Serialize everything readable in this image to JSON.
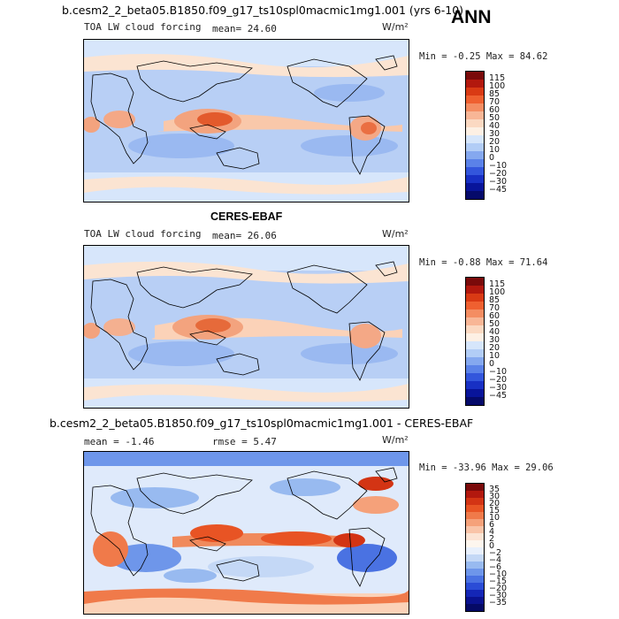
{
  "season": "ANN",
  "panels": [
    {
      "title": "b.cesm2_2_beta05.B1850.f09_g17_ts10spl0macmic1mg1.001 (yrs 6-10)",
      "field": "TOA LW cloud forcing",
      "stat1": "mean=  24.60",
      "stat2": "",
      "units": "W/m²",
      "minmax": "Min =  -0.25 Max =  84.62",
      "colorbar": {
        "levels": [
          "115",
          "100",
          "85",
          "70",
          "60",
          "50",
          "40",
          "30",
          "20",
          "10",
          "0",
          "−10",
          "−20",
          "−30",
          "−45"
        ],
        "colors": [
          "#7a0a0a",
          "#b2180e",
          "#d93a14",
          "#ef6030",
          "#f48d62",
          "#f8b696",
          "#fbd9c2",
          "#fdf0e4",
          "#d6e6fb",
          "#b2cdf6",
          "#85a8ef",
          "#5b82e8",
          "#3356dc",
          "#1830c4",
          "#08149a",
          "#050a6a"
        ]
      }
    },
    {
      "title": "CERES-EBAF",
      "field": "TOA LW cloud forcing",
      "stat1": "mean=  26.06",
      "stat2": "",
      "units": "W/m²",
      "minmax": "Min =  -0.88 Max =  71.64",
      "colorbar": {
        "levels": [
          "115",
          "100",
          "85",
          "70",
          "60",
          "50",
          "40",
          "30",
          "20",
          "10",
          "0",
          "−10",
          "−20",
          "−30",
          "−45"
        ],
        "colors": [
          "#7a0a0a",
          "#b2180e",
          "#d93a14",
          "#ef6030",
          "#f48d62",
          "#f8b696",
          "#fbd9c2",
          "#fdf0e4",
          "#d6e6fb",
          "#b2cdf6",
          "#85a8ef",
          "#5b82e8",
          "#3356dc",
          "#1830c4",
          "#08149a",
          "#050a6a"
        ]
      }
    },
    {
      "title": "b.cesm2_2_beta05.B1850.f09_g17_ts10spl0macmic1mg1.001 - CERES-EBAF",
      "field": "",
      "stat1": "mean =  -1.46",
      "stat2": "rmse =   5.47",
      "units": "W/m²",
      "minmax": "Min = -33.96 Max =  29.06",
      "colorbar": {
        "levels": [
          "35",
          "30",
          "20",
          "15",
          "10",
          "6",
          "4",
          "2",
          "0",
          "−2",
          "−4",
          "−6",
          "−10",
          "−15",
          "−20",
          "−30",
          "−35"
        ],
        "colors": [
          "#7a0a0a",
          "#b2180e",
          "#d33414",
          "#e85424",
          "#f07a4a",
          "#f5a17a",
          "#f9c4a8",
          "#fce4d4",
          "#fdf6ee",
          "#e8f0fc",
          "#c4d8f6",
          "#98baf0",
          "#6e96ea",
          "#4a72e2",
          "#2a4cd6",
          "#1426b6",
          "#0a1290",
          "#050a66"
        ]
      }
    }
  ]
}
